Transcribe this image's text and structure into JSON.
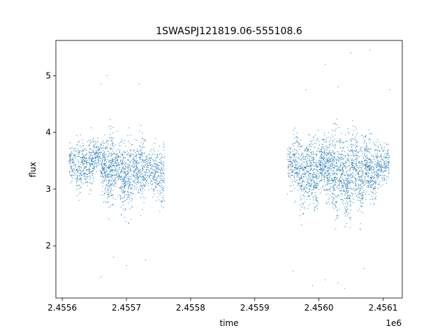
{
  "chart_data": {
    "type": "scatter",
    "title": "1SWASPJ121819.06-555108.6",
    "xlabel": "time",
    "ylabel": "flux",
    "x_offset_label": "1e6",
    "xlim": [
      2.45559,
      2.45613
    ],
    "ylim": [
      1.08,
      5.62
    ],
    "x_ticks": [
      2.4556,
      2.4557,
      2.4558,
      2.4559,
      2.456,
      2.4561
    ],
    "x_tick_labels": [
      "2.4556",
      "2.4557",
      "2.4558",
      "2.4559",
      "2.4560",
      "2.4561"
    ],
    "y_ticks": [
      2,
      3,
      4,
      5
    ],
    "y_tick_labels": [
      "2",
      "3",
      "4",
      "5"
    ],
    "grid": false,
    "marker_color": "#1f77b4",
    "series": [
      {
        "clusters": [
          {
            "x": 2.455615,
            "n": 90,
            "ymin": 2.55,
            "ymax": 4.05
          },
          {
            "x": 2.455625,
            "n": 110,
            "ymin": 2.1,
            "ymax": 4.35
          },
          {
            "x": 2.455635,
            "n": 120,
            "ymin": 2.5,
            "ymax": 4.1
          },
          {
            "x": 2.455645,
            "n": 130,
            "ymin": 2.4,
            "ymax": 4.3
          },
          {
            "x": 2.455655,
            "n": 100,
            "ymin": 2.9,
            "ymax": 4.0
          },
          {
            "x": 2.455665,
            "n": 170,
            "ymin": 2.2,
            "ymax": 4.3
          },
          {
            "x": 2.455675,
            "n": 200,
            "ymin": 1.75,
            "ymax": 4.6
          },
          {
            "x": 2.455685,
            "n": 120,
            "ymin": 2.3,
            "ymax": 4.2
          },
          {
            "x": 2.455695,
            "n": 180,
            "ymin": 1.85,
            "ymax": 4.3
          },
          {
            "x": 2.455705,
            "n": 140,
            "ymin": 1.8,
            "ymax": 4.4
          },
          {
            "x": 2.455715,
            "n": 130,
            "ymin": 2.4,
            "ymax": 4.0
          },
          {
            "x": 2.455725,
            "n": 150,
            "ymin": 2.0,
            "ymax": 4.4
          },
          {
            "x": 2.455735,
            "n": 90,
            "ymin": 2.5,
            "ymax": 3.9
          },
          {
            "x": 2.455745,
            "n": 120,
            "ymin": 2.2,
            "ymax": 4.1
          },
          {
            "x": 2.455755,
            "n": 110,
            "ymin": 1.9,
            "ymax": 4.25
          },
          {
            "x": 2.455955,
            "n": 90,
            "ymin": 2.5,
            "ymax": 4.05
          },
          {
            "x": 2.455965,
            "n": 130,
            "ymin": 2.2,
            "ymax": 4.4
          },
          {
            "x": 2.455975,
            "n": 150,
            "ymin": 1.8,
            "ymax": 4.35
          },
          {
            "x": 2.455985,
            "n": 160,
            "ymin": 2.1,
            "ymax": 4.3
          },
          {
            "x": 2.455995,
            "n": 170,
            "ymin": 1.9,
            "ymax": 4.4
          },
          {
            "x": 2.456005,
            "n": 180,
            "ymin": 2.3,
            "ymax": 4.2
          },
          {
            "x": 2.456015,
            "n": 170,
            "ymin": 2.0,
            "ymax": 4.5
          },
          {
            "x": 2.456025,
            "n": 190,
            "ymin": 1.5,
            "ymax": 4.8
          },
          {
            "x": 2.456035,
            "n": 160,
            "ymin": 1.9,
            "ymax": 4.4
          },
          {
            "x": 2.456045,
            "n": 190,
            "ymin": 1.45,
            "ymax": 4.5
          },
          {
            "x": 2.456055,
            "n": 170,
            "ymin": 2.0,
            "ymax": 4.6
          },
          {
            "x": 2.456065,
            "n": 160,
            "ymin": 1.7,
            "ymax": 4.4
          },
          {
            "x": 2.456075,
            "n": 170,
            "ymin": 2.2,
            "ymax": 4.3
          },
          {
            "x": 2.456085,
            "n": 140,
            "ymin": 2.0,
            "ymax": 4.25
          },
          {
            "x": 2.456095,
            "n": 120,
            "ymin": 2.5,
            "ymax": 4.05
          },
          {
            "x": 2.456105,
            "n": 100,
            "ymin": 2.6,
            "ymax": 4.0
          }
        ],
        "outliers": [
          [
            2.45567,
            5.0
          ],
          [
            2.45566,
            4.85
          ],
          [
            2.45572,
            4.85
          ],
          [
            2.4557,
            1.65
          ],
          [
            2.45566,
            1.45
          ],
          [
            2.45573,
            1.75
          ],
          [
            2.45568,
            1.8
          ],
          [
            2.45601,
            5.2
          ],
          [
            2.45605,
            5.4
          ],
          [
            2.45608,
            5.45
          ],
          [
            2.45603,
            4.8
          ],
          [
            2.45611,
            4.75
          ],
          [
            2.45603,
            1.35
          ],
          [
            2.45604,
            1.25
          ],
          [
            2.45599,
            1.3
          ],
          [
            2.45598,
            4.75
          ],
          [
            2.45601,
            1.4
          ],
          [
            2.45596,
            1.55
          ],
          [
            2.45607,
            1.6
          ]
        ]
      }
    ]
  }
}
